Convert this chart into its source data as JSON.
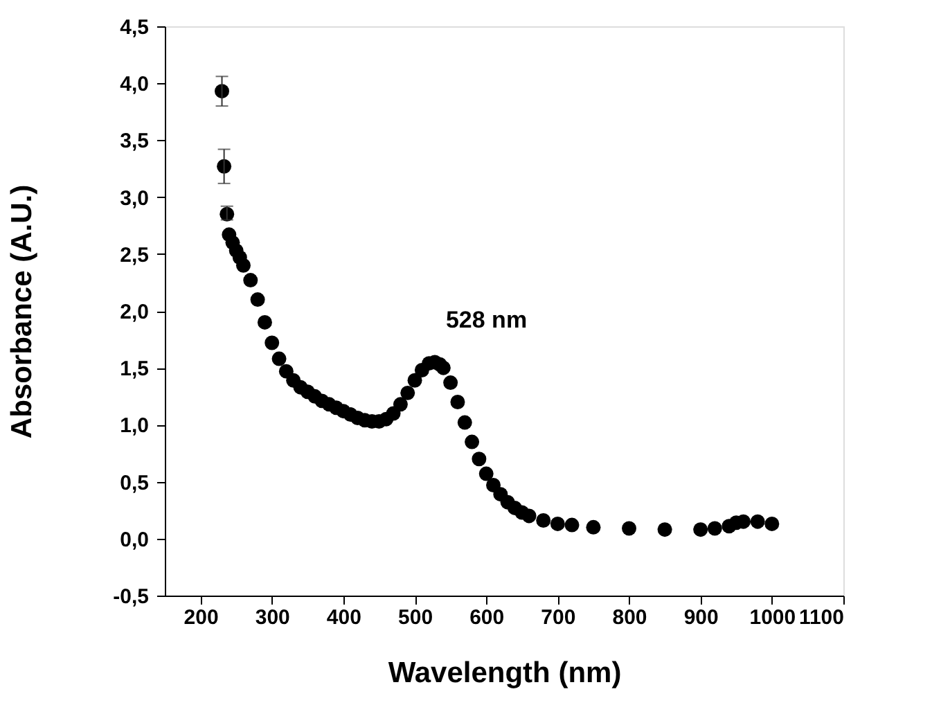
{
  "chart_data": {
    "type": "scatter",
    "xlabel": "Wavelength (nm)",
    "ylabel": "Absorbance (A.U.)",
    "x": [
      230,
      233,
      237,
      240,
      245,
      250,
      255,
      260,
      270,
      280,
      290,
      300,
      310,
      320,
      330,
      340,
      350,
      360,
      370,
      380,
      390,
      400,
      410,
      420,
      430,
      440,
      450,
      460,
      470,
      480,
      490,
      500,
      510,
      520,
      528,
      535,
      540,
      550,
      560,
      570,
      580,
      590,
      600,
      610,
      620,
      630,
      640,
      650,
      660,
      680,
      700,
      720,
      750,
      800,
      850,
      900,
      920,
      940,
      950,
      960,
      980,
      1000
    ],
    "series": [
      {
        "color": "#000000",
        "values": [
          3.93,
          3.27,
          2.85,
          2.67,
          2.6,
          2.53,
          2.47,
          2.4,
          2.27,
          2.1,
          1.9,
          1.72,
          1.58,
          1.47,
          1.39,
          1.33,
          1.29,
          1.25,
          1.21,
          1.18,
          1.15,
          1.12,
          1.09,
          1.06,
          1.04,
          1.03,
          1.03,
          1.05,
          1.1,
          1.18,
          1.28,
          1.39,
          1.48,
          1.54,
          1.55,
          1.53,
          1.5,
          1.37,
          1.2,
          1.02,
          0.85,
          0.7,
          0.57,
          0.47,
          0.39,
          0.32,
          0.27,
          0.23,
          0.2,
          0.16,
          0.13,
          0.12,
          0.1,
          0.09,
          0.08,
          0.08,
          0.09,
          0.11,
          0.14,
          0.15,
          0.15,
          0.13
        ],
        "errors": [
          [
            3.8,
            4.06
          ],
          [
            3.12,
            3.42
          ],
          [
            2.8,
            2.92
          ],
          null,
          null,
          null,
          null,
          null,
          null,
          null,
          null,
          null,
          null,
          null,
          null,
          null,
          null,
          null,
          null,
          null,
          null,
          null,
          null,
          null,
          null,
          null,
          null,
          null,
          null,
          null,
          null,
          null,
          null,
          null,
          null,
          null,
          null,
          null,
          null,
          null,
          null,
          null,
          null,
          null,
          null,
          null,
          null,
          null,
          null,
          null,
          null,
          null,
          null,
          null,
          null,
          null,
          null,
          null,
          null,
          null,
          null,
          null
        ]
      }
    ],
    "marker": "circle",
    "xlim": [
      150,
      1100
    ],
    "xticks": [
      200,
      300,
      400,
      500,
      600,
      700,
      800,
      900,
      1000,
      1100
    ],
    "ylim": [
      -0.5,
      4.5
    ],
    "yticks": [
      {
        "value": -0.5,
        "label": "-0,5"
      },
      {
        "value": 0,
        "label": "0,0"
      },
      {
        "value": 0.5,
        "label": "0,5"
      },
      {
        "value": 1,
        "label": "1,0"
      },
      {
        "value": 1.5,
        "label": "1,5"
      },
      {
        "value": 2,
        "label": "2,0"
      },
      {
        "value": 2.5,
        "label": "2,5"
      },
      {
        "value": 3,
        "label": "3,0"
      },
      {
        "value": 3.5,
        "label": "3,5"
      },
      {
        "value": 4,
        "label": "4,0"
      },
      {
        "value": 4.5,
        "label": "4,5"
      }
    ],
    "annotations": [
      {
        "text": "528 nm",
        "x": 528,
        "y": 1.55
      }
    ],
    "grid": false
  }
}
